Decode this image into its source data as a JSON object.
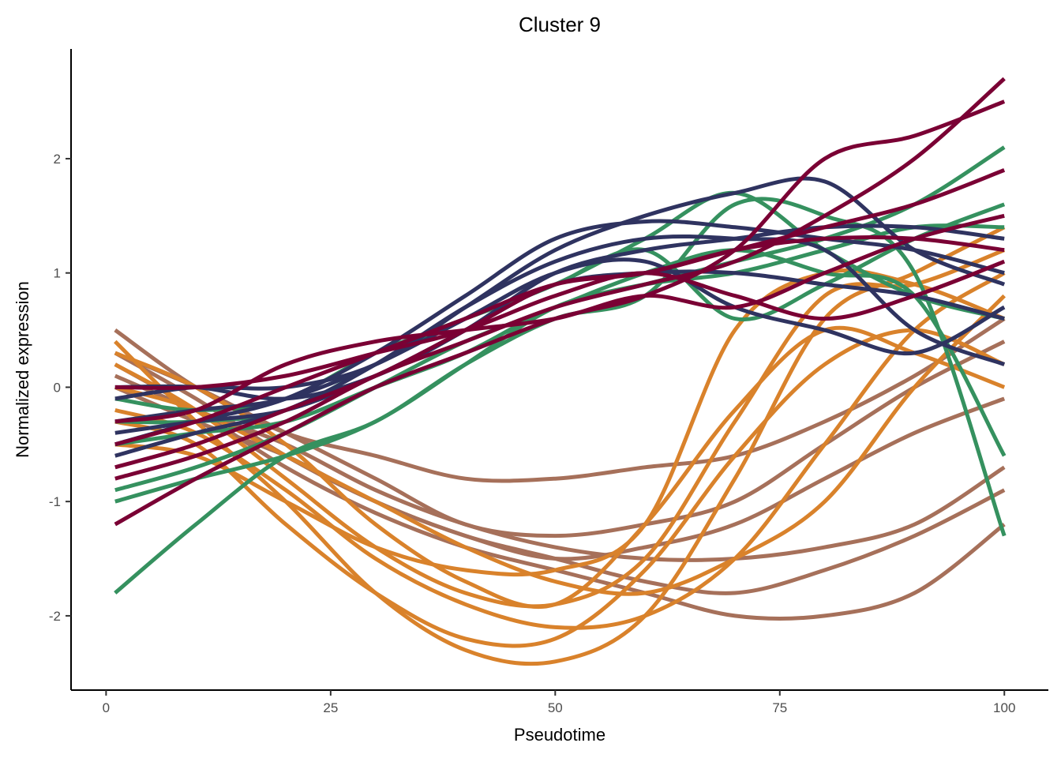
{
  "chart_data": {
    "type": "line",
    "title": "Cluster 9",
    "xlabel": "Pseudotime",
    "ylabel": "Normalized expression",
    "xlim": [
      -3.9,
      104.9
    ],
    "ylim": [
      -2.65,
      2.96
    ],
    "xticks": [
      0,
      25,
      50,
      75,
      100
    ],
    "yticks": [
      -2,
      -1,
      0,
      1,
      2
    ],
    "grid": false,
    "legend": "none",
    "x": [
      1,
      10,
      20,
      30,
      40,
      50,
      60,
      70,
      80,
      90,
      100
    ],
    "groups": [
      {
        "color": "#A6705A",
        "series": [
          [
            0.5,
            0.0,
            -0.4,
            -0.6,
            -0.8,
            -0.8,
            -0.7,
            -0.6,
            -0.3,
            0.1,
            0.6
          ],
          [
            0.3,
            -0.1,
            -0.6,
            -1.0,
            -1.3,
            -1.5,
            -1.7,
            -1.8,
            -1.6,
            -1.3,
            -0.9
          ],
          [
            0.2,
            -0.2,
            -0.7,
            -1.1,
            -1.4,
            -1.6,
            -1.8,
            -2.0,
            -2.0,
            -1.8,
            -1.2
          ],
          [
            0.0,
            -0.3,
            -0.6,
            -1.0,
            -1.3,
            -1.5,
            -1.4,
            -1.2,
            -0.8,
            -0.4,
            -0.1
          ],
          [
            0.1,
            -0.2,
            -0.5,
            -0.9,
            -1.2,
            -1.4,
            -1.5,
            -1.5,
            -1.4,
            -1.2,
            -0.7
          ],
          [
            0.3,
            0.0,
            -0.4,
            -0.8,
            -1.2,
            -1.3,
            -1.2,
            -1.0,
            -0.5,
            0.0,
            0.4
          ]
        ]
      },
      {
        "color": "#D9822B",
        "series": [
          [
            0.4,
            -0.3,
            -1.0,
            -1.8,
            -2.3,
            -2.4,
            -2.0,
            -0.8,
            0.6,
            1.0,
            1.4
          ],
          [
            0.2,
            -0.2,
            -0.8,
            -1.4,
            -1.8,
            -1.9,
            -1.5,
            -0.3,
            0.8,
            0.9,
            1.2
          ],
          [
            -0.2,
            -0.4,
            -0.9,
            -1.5,
            -1.9,
            -2.1,
            -2.0,
            -1.5,
            -0.5,
            0.5,
            1.0
          ],
          [
            -0.5,
            -0.6,
            -1.0,
            -1.4,
            -1.6,
            -1.6,
            -1.2,
            0.5,
            1.0,
            0.9,
            0.6
          ],
          [
            0.0,
            -0.2,
            -0.6,
            -1.0,
            -1.4,
            -1.7,
            -1.8,
            -1.5,
            -1.0,
            0.0,
            0.8
          ],
          [
            0.3,
            0.0,
            -0.5,
            -1.2,
            -1.7,
            -1.9,
            -1.2,
            -0.2,
            0.5,
            0.3,
            0.0
          ],
          [
            -0.3,
            -0.5,
            -1.2,
            -1.8,
            -2.2,
            -2.2,
            -1.6,
            -0.6,
            0.2,
            0.5,
            0.2
          ]
        ]
      },
      {
        "color": "#35915F",
        "series": [
          [
            -1.8,
            -1.2,
            -0.6,
            -0.3,
            0.2,
            0.7,
            0.9,
            1.1,
            1.3,
            1.6,
            2.1
          ],
          [
            -1.0,
            -0.8,
            -0.6,
            -0.3,
            0.2,
            0.6,
            0.8,
            1.6,
            1.5,
            1.0,
            -1.3
          ],
          [
            -0.3,
            -0.3,
            -0.2,
            0.2,
            0.6,
            0.9,
            1.2,
            0.6,
            0.9,
            1.3,
            1.6
          ],
          [
            -0.9,
            -0.7,
            -0.4,
            0.0,
            0.4,
            0.7,
            1.0,
            1.2,
            1.0,
            0.8,
            -0.6
          ],
          [
            -0.1,
            -0.2,
            -0.1,
            0.3,
            0.6,
            0.9,
            1.3,
            1.7,
            1.2,
            0.8,
            0.6
          ],
          [
            -0.5,
            -0.4,
            -0.3,
            0.0,
            0.3,
            0.7,
            0.9,
            1.0,
            1.2,
            1.4,
            1.4
          ]
        ]
      },
      {
        "color": "#2F3360",
        "series": [
          [
            -0.1,
            0.0,
            0.0,
            0.2,
            0.7,
            1.2,
            1.5,
            1.7,
            1.8,
            1.2,
            0.9
          ],
          [
            -0.5,
            -0.3,
            -0.1,
            0.3,
            0.8,
            1.3,
            1.45,
            1.4,
            1.3,
            1.2,
            1.0
          ],
          [
            -0.3,
            -0.2,
            -0.1,
            0.2,
            0.6,
            1.0,
            1.1,
            0.7,
            0.5,
            0.3,
            0.7
          ],
          [
            -0.6,
            -0.4,
            -0.2,
            0.2,
            0.7,
            1.1,
            1.3,
            1.3,
            1.2,
            0.5,
            0.2
          ],
          [
            0.0,
            0.0,
            -0.1,
            0.1,
            0.5,
            1.0,
            1.2,
            1.3,
            1.4,
            1.4,
            1.3
          ],
          [
            -0.4,
            -0.3,
            -0.2,
            0.1,
            0.5,
            0.9,
            1.0,
            1.0,
            0.9,
            0.8,
            0.6
          ]
        ]
      },
      {
        "color": "#7A0034",
        "series": [
          [
            -1.2,
            -0.8,
            -0.4,
            0.0,
            0.3,
            0.6,
            0.8,
            1.2,
            2.0,
            2.2,
            2.5
          ],
          [
            -0.8,
            -0.6,
            -0.3,
            0.1,
            0.4,
            0.7,
            0.9,
            1.1,
            1.5,
            2.0,
            2.7
          ],
          [
            -0.5,
            -0.3,
            0.0,
            0.3,
            0.6,
            0.9,
            1.0,
            1.2,
            1.4,
            1.6,
            1.9
          ],
          [
            0.0,
            0.0,
            0.1,
            0.3,
            0.5,
            0.8,
            1.0,
            0.8,
            0.6,
            0.8,
            1.1
          ],
          [
            -0.3,
            -0.2,
            0.2,
            0.4,
            0.5,
            0.6,
            0.8,
            0.7,
            1.0,
            1.3,
            1.5
          ],
          [
            -0.7,
            -0.5,
            -0.2,
            0.1,
            0.5,
            0.9,
            1.0,
            1.2,
            1.3,
            1.3,
            1.2
          ]
        ]
      }
    ]
  }
}
